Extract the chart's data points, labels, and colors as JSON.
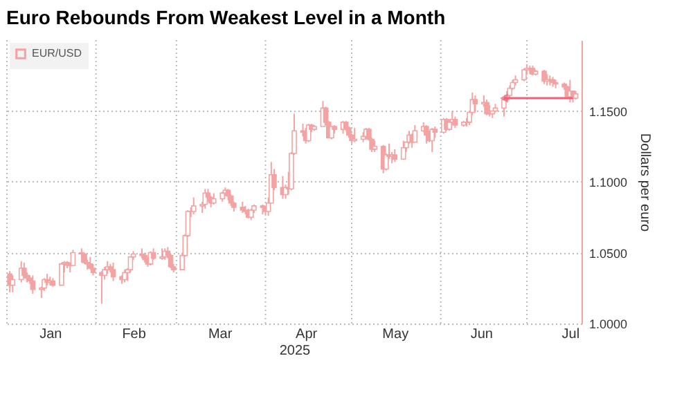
{
  "chart_data": {
    "type": "candlestick",
    "title": "Euro Rebounds From Weakest Level in a Month",
    "xlabel": "2025",
    "ylabel": "Dollars per euro",
    "legend": "top left",
    "grid": true,
    "xlim": [
      "2025-01-01",
      "2025-07-20"
    ],
    "xticks": [
      {
        "value": "2025-01-01",
        "label": null
      },
      {
        "value": "2025-01-16",
        "label": "Jan"
      },
      {
        "value": "2025-02-01",
        "label": null
      },
      {
        "value": "2025-02-14",
        "label": "Feb"
      },
      {
        "value": "2025-03-01",
        "label": null
      },
      {
        "value": "2025-03-16",
        "label": "Mar"
      },
      {
        "value": "2025-04-01",
        "label": null
      },
      {
        "value": "2025-04-15",
        "label": "Apr"
      },
      {
        "value": "2025-05-01",
        "label": null
      },
      {
        "value": "2025-05-16",
        "label": "May"
      },
      {
        "value": "2025-06-01",
        "label": null
      },
      {
        "value": "2025-06-15",
        "label": "Jun"
      },
      {
        "value": "2025-07-01",
        "label": null
      },
      {
        "value": "2025-07-16",
        "label": "Jul"
      }
    ],
    "ylim": [
      1.0,
      1.2
    ],
    "yticks": [
      {
        "value": 1.0,
        "label": "1.0000"
      },
      {
        "value": 1.05,
        "label": "1.0500"
      },
      {
        "value": 1.1,
        "label": "1.1000"
      },
      {
        "value": 1.15,
        "label": "1.1500"
      }
    ],
    "x": [
      "2025-01-02",
      "2025-01-03",
      "2025-01-06",
      "2025-01-07",
      "2025-01-08",
      "2025-01-09",
      "2025-01-10",
      "2025-01-13",
      "2025-01-14",
      "2025-01-15",
      "2025-01-16",
      "2025-01-17",
      "2025-01-20",
      "2025-01-21",
      "2025-01-22",
      "2025-01-23",
      "2025-01-24",
      "2025-01-27",
      "2025-01-28",
      "2025-01-29",
      "2025-01-30",
      "2025-01-31",
      "2025-02-03",
      "2025-02-04",
      "2025-02-05",
      "2025-02-06",
      "2025-02-07",
      "2025-02-10",
      "2025-02-11",
      "2025-02-12",
      "2025-02-13",
      "2025-02-14",
      "2025-02-17",
      "2025-02-18",
      "2025-02-19",
      "2025-02-20",
      "2025-02-21",
      "2025-02-24",
      "2025-02-25",
      "2025-02-26",
      "2025-02-27",
      "2025-02-28",
      "2025-03-03",
      "2025-03-04",
      "2025-03-05",
      "2025-03-06",
      "2025-03-07",
      "2025-03-10",
      "2025-03-11",
      "2025-03-12",
      "2025-03-13",
      "2025-03-14",
      "2025-03-17",
      "2025-03-18",
      "2025-03-19",
      "2025-03-20",
      "2025-03-21",
      "2025-03-24",
      "2025-03-25",
      "2025-03-26",
      "2025-03-27",
      "2025-03-28",
      "2025-03-31",
      "2025-04-01",
      "2025-04-02",
      "2025-04-03",
      "2025-04-04",
      "2025-04-07",
      "2025-04-08",
      "2025-04-09",
      "2025-04-10",
      "2025-04-11",
      "2025-04-14",
      "2025-04-15",
      "2025-04-16",
      "2025-04-17",
      "2025-04-18",
      "2025-04-21",
      "2025-04-22",
      "2025-04-23",
      "2025-04-24",
      "2025-04-25",
      "2025-04-28",
      "2025-04-29",
      "2025-04-30",
      "2025-05-01",
      "2025-05-02",
      "2025-05-05",
      "2025-05-06",
      "2025-05-07",
      "2025-05-08",
      "2025-05-09",
      "2025-05-12",
      "2025-05-13",
      "2025-05-14",
      "2025-05-15",
      "2025-05-16",
      "2025-05-19",
      "2025-05-20",
      "2025-05-21",
      "2025-05-22",
      "2025-05-23",
      "2025-05-26",
      "2025-05-27",
      "2025-05-28",
      "2025-05-29",
      "2025-05-30",
      "2025-06-02",
      "2025-06-03",
      "2025-06-04",
      "2025-06-05",
      "2025-06-06",
      "2025-06-09",
      "2025-06-10",
      "2025-06-11",
      "2025-06-12",
      "2025-06-13",
      "2025-06-16",
      "2025-06-17",
      "2025-06-18",
      "2025-06-19",
      "2025-06-20",
      "2025-06-23",
      "2025-06-24",
      "2025-06-25",
      "2025-06-26",
      "2025-06-27",
      "2025-06-30",
      "2025-07-01",
      "2025-07-02",
      "2025-07-03",
      "2025-07-04",
      "2025-07-07",
      "2025-07-08",
      "2025-07-09",
      "2025-07-10",
      "2025-07-11",
      "2025-07-14",
      "2025-07-15",
      "2025-07-16",
      "2025-07-17",
      "2025-07-18"
    ],
    "series": [
      {
        "name": "EUR/USD",
        "color": "#f4a3a3",
        "ohlc": [
          [
            1.035,
            1.037,
            1.022,
            1.027
          ],
          [
            1.027,
            1.034,
            1.022,
            1.031
          ],
          [
            1.031,
            1.044,
            1.029,
            1.039
          ],
          [
            1.039,
            1.043,
            1.032,
            1.034
          ],
          [
            1.034,
            1.036,
            1.029,
            1.032
          ],
          [
            1.032,
            1.034,
            1.028,
            1.03
          ],
          [
            1.03,
            1.034,
            1.021,
            1.024
          ],
          [
            1.024,
            1.026,
            1.018,
            1.025
          ],
          [
            1.025,
            1.032,
            1.023,
            1.031
          ],
          [
            1.031,
            1.035,
            1.027,
            1.029
          ],
          [
            1.029,
            1.033,
            1.027,
            1.03
          ],
          [
            1.03,
            1.032,
            1.026,
            1.027
          ],
          [
            1.027,
            1.043,
            1.027,
            1.042
          ],
          [
            1.042,
            1.044,
            1.036,
            1.043
          ],
          [
            1.043,
            1.044,
            1.039,
            1.041
          ],
          [
            1.041,
            1.043,
            1.036,
            1.041
          ],
          [
            1.041,
            1.052,
            1.041,
            1.05
          ],
          [
            1.05,
            1.053,
            1.043,
            1.049
          ],
          [
            1.049,
            1.05,
            1.042,
            1.043
          ],
          [
            1.043,
            1.045,
            1.038,
            1.042
          ],
          [
            1.042,
            1.047,
            1.038,
            1.039
          ],
          [
            1.039,
            1.042,
            1.034,
            1.036
          ],
          [
            1.036,
            1.037,
            1.014,
            1.034
          ],
          [
            1.034,
            1.04,
            1.031,
            1.038
          ],
          [
            1.038,
            1.044,
            1.035,
            1.04
          ],
          [
            1.04,
            1.042,
            1.036,
            1.038
          ],
          [
            1.038,
            1.043,
            1.03,
            1.033
          ],
          [
            1.033,
            1.034,
            1.028,
            1.031
          ],
          [
            1.031,
            1.038,
            1.029,
            1.036
          ],
          [
            1.036,
            1.039,
            1.03,
            1.038
          ],
          [
            1.038,
            1.047,
            1.036,
            1.047
          ],
          [
            1.047,
            1.051,
            1.045,
            1.049
          ],
          [
            1.049,
            1.053,
            1.046,
            1.048
          ],
          [
            1.048,
            1.05,
            1.043,
            1.045
          ],
          [
            1.045,
            1.047,
            1.04,
            1.042
          ],
          [
            1.042,
            1.051,
            1.041,
            1.05
          ],
          [
            1.05,
            1.053,
            1.045,
            1.046
          ],
          [
            1.046,
            1.053,
            1.045,
            1.047
          ],
          [
            1.047,
            1.053,
            1.045,
            1.051
          ],
          [
            1.051,
            1.054,
            1.046,
            1.048
          ],
          [
            1.048,
            1.049,
            1.039,
            1.04
          ],
          [
            1.04,
            1.042,
            1.036,
            1.038
          ],
          [
            1.038,
            1.05,
            1.038,
            1.048
          ],
          [
            1.048,
            1.063,
            1.047,
            1.062
          ],
          [
            1.062,
            1.08,
            1.061,
            1.079
          ],
          [
            1.079,
            1.082,
            1.075,
            1.079
          ],
          [
            1.079,
            1.089,
            1.077,
            1.083
          ],
          [
            1.083,
            1.086,
            1.078,
            1.084
          ],
          [
            1.084,
            1.095,
            1.081,
            1.092
          ],
          [
            1.092,
            1.095,
            1.086,
            1.089
          ],
          [
            1.089,
            1.09,
            1.082,
            1.085
          ],
          [
            1.085,
            1.092,
            1.084,
            1.088
          ],
          [
            1.088,
            1.093,
            1.086,
            1.092
          ],
          [
            1.092,
            1.096,
            1.09,
            1.094
          ],
          [
            1.094,
            1.095,
            1.087,
            1.09
          ],
          [
            1.09,
            1.091,
            1.083,
            1.085
          ],
          [
            1.085,
            1.086,
            1.079,
            1.082
          ],
          [
            1.082,
            1.086,
            1.078,
            1.08
          ],
          [
            1.08,
            1.083,
            1.077,
            1.079
          ],
          [
            1.079,
            1.081,
            1.074,
            1.075
          ],
          [
            1.075,
            1.081,
            1.073,
            1.08
          ],
          [
            1.08,
            1.084,
            1.078,
            1.083
          ],
          [
            1.083,
            1.084,
            1.077,
            1.082
          ],
          [
            1.082,
            1.083,
            1.077,
            1.079
          ],
          [
            1.079,
            1.089,
            1.076,
            1.085
          ],
          [
            1.085,
            1.114,
            1.085,
            1.105
          ],
          [
            1.105,
            1.109,
            1.094,
            1.096
          ],
          [
            1.096,
            1.104,
            1.088,
            1.091
          ],
          [
            1.091,
            1.098,
            1.088,
            1.096
          ],
          [
            1.096,
            1.107,
            1.091,
            1.095
          ],
          [
            1.095,
            1.121,
            1.094,
            1.12
          ],
          [
            1.12,
            1.148,
            1.119,
            1.136
          ],
          [
            1.136,
            1.141,
            1.132,
            1.135
          ],
          [
            1.135,
            1.138,
            1.127,
            1.129
          ],
          [
            1.129,
            1.141,
            1.128,
            1.14
          ],
          [
            1.14,
            1.141,
            1.135,
            1.137
          ],
          [
            1.137,
            1.14,
            1.136,
            1.139
          ],
          [
            1.139,
            1.157,
            1.139,
            1.152
          ],
          [
            1.152,
            1.153,
            1.14,
            1.142
          ],
          [
            1.142,
            1.143,
            1.131,
            1.131
          ],
          [
            1.131,
            1.139,
            1.13,
            1.139
          ],
          [
            1.139,
            1.14,
            1.134,
            1.137
          ],
          [
            1.137,
            1.143,
            1.134,
            1.142
          ],
          [
            1.142,
            1.143,
            1.136,
            1.138
          ],
          [
            1.138,
            1.139,
            1.131,
            1.133
          ],
          [
            1.133,
            1.134,
            1.127,
            1.129
          ],
          [
            1.129,
            1.138,
            1.128,
            1.13
          ],
          [
            1.13,
            1.135,
            1.128,
            1.132
          ],
          [
            1.132,
            1.138,
            1.13,
            1.137
          ],
          [
            1.137,
            1.138,
            1.129,
            1.13
          ],
          [
            1.13,
            1.131,
            1.121,
            1.123
          ],
          [
            1.123,
            1.129,
            1.121,
            1.125
          ],
          [
            1.125,
            1.126,
            1.106,
            1.109
          ],
          [
            1.109,
            1.12,
            1.108,
            1.119
          ],
          [
            1.119,
            1.127,
            1.116,
            1.118
          ],
          [
            1.118,
            1.121,
            1.113,
            1.119
          ],
          [
            1.119,
            1.123,
            1.114,
            1.116
          ],
          [
            1.116,
            1.129,
            1.116,
            1.124
          ],
          [
            1.124,
            1.128,
            1.121,
            1.128
          ],
          [
            1.128,
            1.136,
            1.127,
            1.133
          ],
          [
            1.133,
            1.134,
            1.124,
            1.128
          ],
          [
            1.128,
            1.14,
            1.128,
            1.136
          ],
          [
            1.136,
            1.142,
            1.135,
            1.139
          ],
          [
            1.139,
            1.14,
            1.127,
            1.133
          ],
          [
            1.133,
            1.136,
            1.128,
            1.129
          ],
          [
            1.129,
            1.138,
            1.121,
            1.137
          ],
          [
            1.137,
            1.139,
            1.131,
            1.135
          ],
          [
            1.135,
            1.145,
            1.134,
            1.144
          ],
          [
            1.144,
            1.145,
            1.136,
            1.137
          ],
          [
            1.137,
            1.144,
            1.136,
            1.142
          ],
          [
            1.142,
            1.15,
            1.14,
            1.144
          ],
          [
            1.144,
            1.146,
            1.138,
            1.14
          ],
          [
            1.14,
            1.143,
            1.139,
            1.142
          ],
          [
            1.142,
            1.145,
            1.139,
            1.142
          ],
          [
            1.142,
            1.15,
            1.14,
            1.149
          ],
          [
            1.149,
            1.163,
            1.147,
            1.158
          ],
          [
            1.158,
            1.161,
            1.149,
            1.155
          ],
          [
            1.155,
            1.161,
            1.153,
            1.156
          ],
          [
            1.156,
            1.158,
            1.147,
            1.148
          ],
          [
            1.148,
            1.154,
            1.146,
            1.148
          ],
          [
            1.148,
            1.15,
            1.145,
            1.15
          ],
          [
            1.15,
            1.155,
            1.149,
            1.152
          ],
          [
            1.152,
            1.159,
            1.146,
            1.158
          ],
          [
            1.158,
            1.164,
            1.157,
            1.161
          ],
          [
            1.161,
            1.168,
            1.159,
            1.166
          ],
          [
            1.166,
            1.172,
            1.165,
            1.17
          ],
          [
            1.17,
            1.175,
            1.168,
            1.172
          ],
          [
            1.172,
            1.18,
            1.171,
            1.179
          ],
          [
            1.179,
            1.183,
            1.176,
            1.18
          ],
          [
            1.18,
            1.182,
            1.176,
            1.18
          ],
          [
            1.18,
            1.182,
            1.175,
            1.176
          ],
          [
            1.176,
            1.179,
            1.175,
            1.178
          ],
          [
            1.178,
            1.179,
            1.169,
            1.171
          ],
          [
            1.171,
            1.176,
            1.168,
            1.172
          ],
          [
            1.172,
            1.175,
            1.168,
            1.172
          ],
          [
            1.172,
            1.174,
            1.167,
            1.17
          ],
          [
            1.17,
            1.172,
            1.166,
            1.169
          ],
          [
            1.169,
            1.17,
            1.165,
            1.167
          ],
          [
            1.167,
            1.168,
            1.159,
            1.16
          ],
          [
            1.16,
            1.172,
            1.156,
            1.164
          ],
          [
            1.164,
            1.164,
            1.156,
            1.159
          ],
          [
            1.159,
            1.164,
            1.158,
            1.162
          ]
        ]
      }
    ]
  }
}
